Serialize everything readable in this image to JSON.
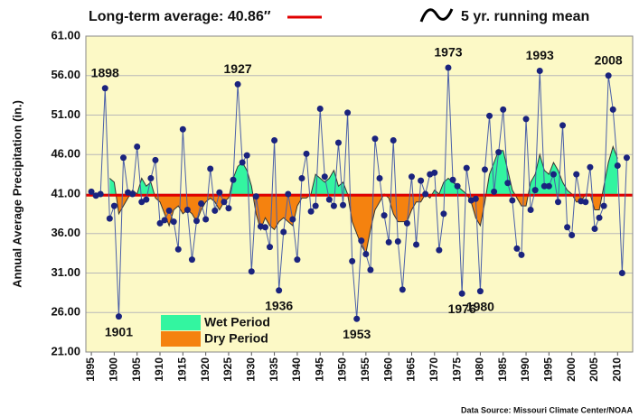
{
  "chart_data": {
    "type": "line",
    "y_label": "Annual Average Precipitation (in.)",
    "source": "Data Source: Missouri Climate Center/NOAA",
    "x": [
      1895,
      1896,
      1897,
      1898,
      1899,
      1900,
      1901,
      1902,
      1903,
      1904,
      1905,
      1906,
      1907,
      1908,
      1909,
      1910,
      1911,
      1912,
      1913,
      1914,
      1915,
      1916,
      1917,
      1918,
      1919,
      1920,
      1921,
      1922,
      1923,
      1924,
      1925,
      1926,
      1927,
      1928,
      1929,
      1930,
      1931,
      1932,
      1933,
      1934,
      1935,
      1936,
      1937,
      1938,
      1939,
      1940,
      1941,
      1942,
      1943,
      1944,
      1945,
      1946,
      1947,
      1948,
      1949,
      1950,
      1951,
      1952,
      1953,
      1954,
      1955,
      1956,
      1957,
      1958,
      1959,
      1960,
      1961,
      1962,
      1963,
      1964,
      1965,
      1966,
      1967,
      1968,
      1969,
      1970,
      1971,
      1972,
      1973,
      1974,
      1975,
      1976,
      1977,
      1978,
      1979,
      1980,
      1981,
      1982,
      1983,
      1984,
      1985,
      1986,
      1987,
      1988,
      1989,
      1990,
      1991,
      1992,
      1993,
      1994,
      1995,
      1996,
      1997,
      1998,
      1999,
      2000,
      2001,
      2002,
      2003,
      2004,
      2005,
      2006,
      2007,
      2008,
      2009,
      2010,
      2011,
      2012
    ],
    "series": [
      {
        "color": "#1a237e",
        "line_color": "#4a5fa8",
        "values": [
          41.3,
          40.8,
          41.0,
          54.4,
          37.9,
          39.5,
          25.5,
          45.6,
          41.2,
          41.0,
          47.0,
          40.0,
          40.3,
          43.0,
          45.3,
          37.3,
          37.7,
          38.9,
          37.5,
          34.0,
          49.2,
          39.0,
          32.7,
          37.6,
          39.8,
          37.8,
          44.2,
          38.9,
          41.2,
          40.0,
          39.2,
          42.8,
          54.9,
          45.0,
          45.9,
          31.2,
          40.7,
          36.9,
          36.8,
          34.3,
          47.8,
          28.8,
          36.2,
          41.0,
          37.8,
          32.7,
          43.0,
          46.1,
          38.8,
          39.5,
          51.8,
          43.2,
          40.3,
          39.5,
          47.5,
          39.6,
          51.3,
          32.5,
          25.2,
          35.1,
          33.4,
          31.4,
          48.0,
          43.0,
          38.3,
          34.9,
          47.8,
          35.0,
          28.9,
          37.3,
          43.2,
          34.6,
          42.7,
          41.0,
          43.5,
          43.7,
          33.9,
          38.5,
          57.0,
          42.8,
          42.0,
          28.4,
          44.3,
          40.2,
          40.4,
          28.7,
          44.1,
          50.9,
          41.3,
          46.3,
          51.7,
          42.4,
          40.2,
          34.1,
          33.3,
          50.5,
          39.0,
          41.5,
          56.6,
          42.0,
          42.0,
          43.5,
          40.0,
          49.7,
          36.8,
          35.8,
          43.5,
          40.1,
          40.0,
          44.4,
          36.6,
          38.0,
          39.5,
          56.0,
          51.7,
          44.6,
          31.0,
          45.6
        ]
      }
    ],
    "running_mean": {
      "name": "5 yr. running mean",
      "color": "#333333",
      "wet_label": "Wet Period",
      "wet_color": "#33f5a0",
      "dry_label": "Dry Period",
      "dry_color": "#f5820f",
      "x": [
        1899,
        1900,
        1901,
        1902,
        1903,
        1904,
        1905,
        1906,
        1907,
        1908,
        1909,
        1910,
        1911,
        1912,
        1913,
        1914,
        1915,
        1916,
        1917,
        1918,
        1919,
        1920,
        1921,
        1922,
        1923,
        1924,
        1925,
        1926,
        1927,
        1928,
        1929,
        1930,
        1931,
        1932,
        1933,
        1934,
        1935,
        1936,
        1937,
        1938,
        1939,
        1940,
        1941,
        1942,
        1943,
        1944,
        1945,
        1946,
        1947,
        1948,
        1949,
        1950,
        1951,
        1952,
        1953,
        1954,
        1955,
        1956,
        1957,
        1958,
        1959,
        1960,
        1961,
        1962,
        1963,
        1964,
        1965,
        1966,
        1967,
        1968,
        1969,
        1970,
        1971,
        1972,
        1973,
        1974,
        1975,
        1976,
        1977,
        1978,
        1979,
        1980,
        1981,
        1982,
        1983,
        1984,
        1985,
        1986,
        1987,
        1988,
        1989,
        1990,
        1991,
        1992,
        1993,
        1994,
        1995,
        1996,
        1997,
        1998,
        1999,
        2000,
        2001,
        2002,
        2003,
        2004,
        2005,
        2006,
        2007,
        2008,
        2009,
        2010
      ],
      "values": [
        43.0,
        42.5,
        38.5,
        39.5,
        40.5,
        41.5,
        41.0,
        43.0,
        42.0,
        42.5,
        40.5,
        40.0,
        38.5,
        37.0,
        39.0,
        39.5,
        38.5,
        39.0,
        38.5,
        37.5,
        39.0,
        40.0,
        40.5,
        40.0,
        39.0,
        40.0,
        40.5,
        43.0,
        44.5,
        45.0,
        44.0,
        42.0,
        38.5,
        36.5,
        38.0,
        37.0,
        36.5,
        37.5,
        38.0,
        37.5,
        37.0,
        39.5,
        40.5,
        40.5,
        41.0,
        43.5,
        43.0,
        42.5,
        43.0,
        44.0,
        42.0,
        42.5,
        41.0,
        37.5,
        36.0,
        34.5,
        33.5,
        36.5,
        39.0,
        40.0,
        41.0,
        40.5,
        38.5,
        37.5,
        37.5,
        37.5,
        39.0,
        40.0,
        40.0,
        41.0,
        40.5,
        41.5,
        41.0,
        42.5,
        43.0,
        42.5,
        42.0,
        41.5,
        41.0,
        40.0,
        38.0,
        37.0,
        40.0,
        43.5,
        45.0,
        46.5,
        46.5,
        44.0,
        41.5,
        40.5,
        39.5,
        39.5,
        42.5,
        43.5,
        46.0,
        44.0,
        43.5,
        45.0,
        44.0,
        42.5,
        41.5,
        41.0,
        40.0,
        40.0,
        41.0,
        41.0,
        39.0,
        39.0,
        42.0,
        45.0,
        47.0,
        45.5
      ]
    },
    "average": {
      "label": "Long-term average: 40.86″",
      "value": 40.86,
      "color": "#e00000"
    },
    "annotations": [
      "1898",
      "1901",
      "1927",
      "1936",
      "1953",
      "1973",
      "1976",
      "1980",
      "1993",
      "2008"
    ],
    "xlim": [
      1893.8,
      2013.3
    ],
    "xticks": [
      1895,
      1900,
      1905,
      1910,
      1915,
      1920,
      1925,
      1930,
      1935,
      1940,
      1945,
      1950,
      1955,
      1960,
      1965,
      1970,
      1975,
      1980,
      1985,
      1990,
      1995,
      2000,
      2005,
      2010
    ],
    "ylim": [
      21,
      61
    ],
    "yticks": [
      {
        "value": 21,
        "label": "21.00"
      },
      {
        "value": 26,
        "label": "26.00"
      },
      {
        "value": 31,
        "label": "31.00"
      },
      {
        "value": 36,
        "label": "36.00"
      },
      {
        "value": 41,
        "label": "41.00"
      },
      {
        "value": 46,
        "label": "46.00"
      },
      {
        "value": 51,
        "label": "51.00"
      },
      {
        "value": 56,
        "label": "56.00"
      },
      {
        "value": 61,
        "label": "61.00"
      }
    ],
    "grid": true,
    "plot_background": "#fcf9c6"
  }
}
